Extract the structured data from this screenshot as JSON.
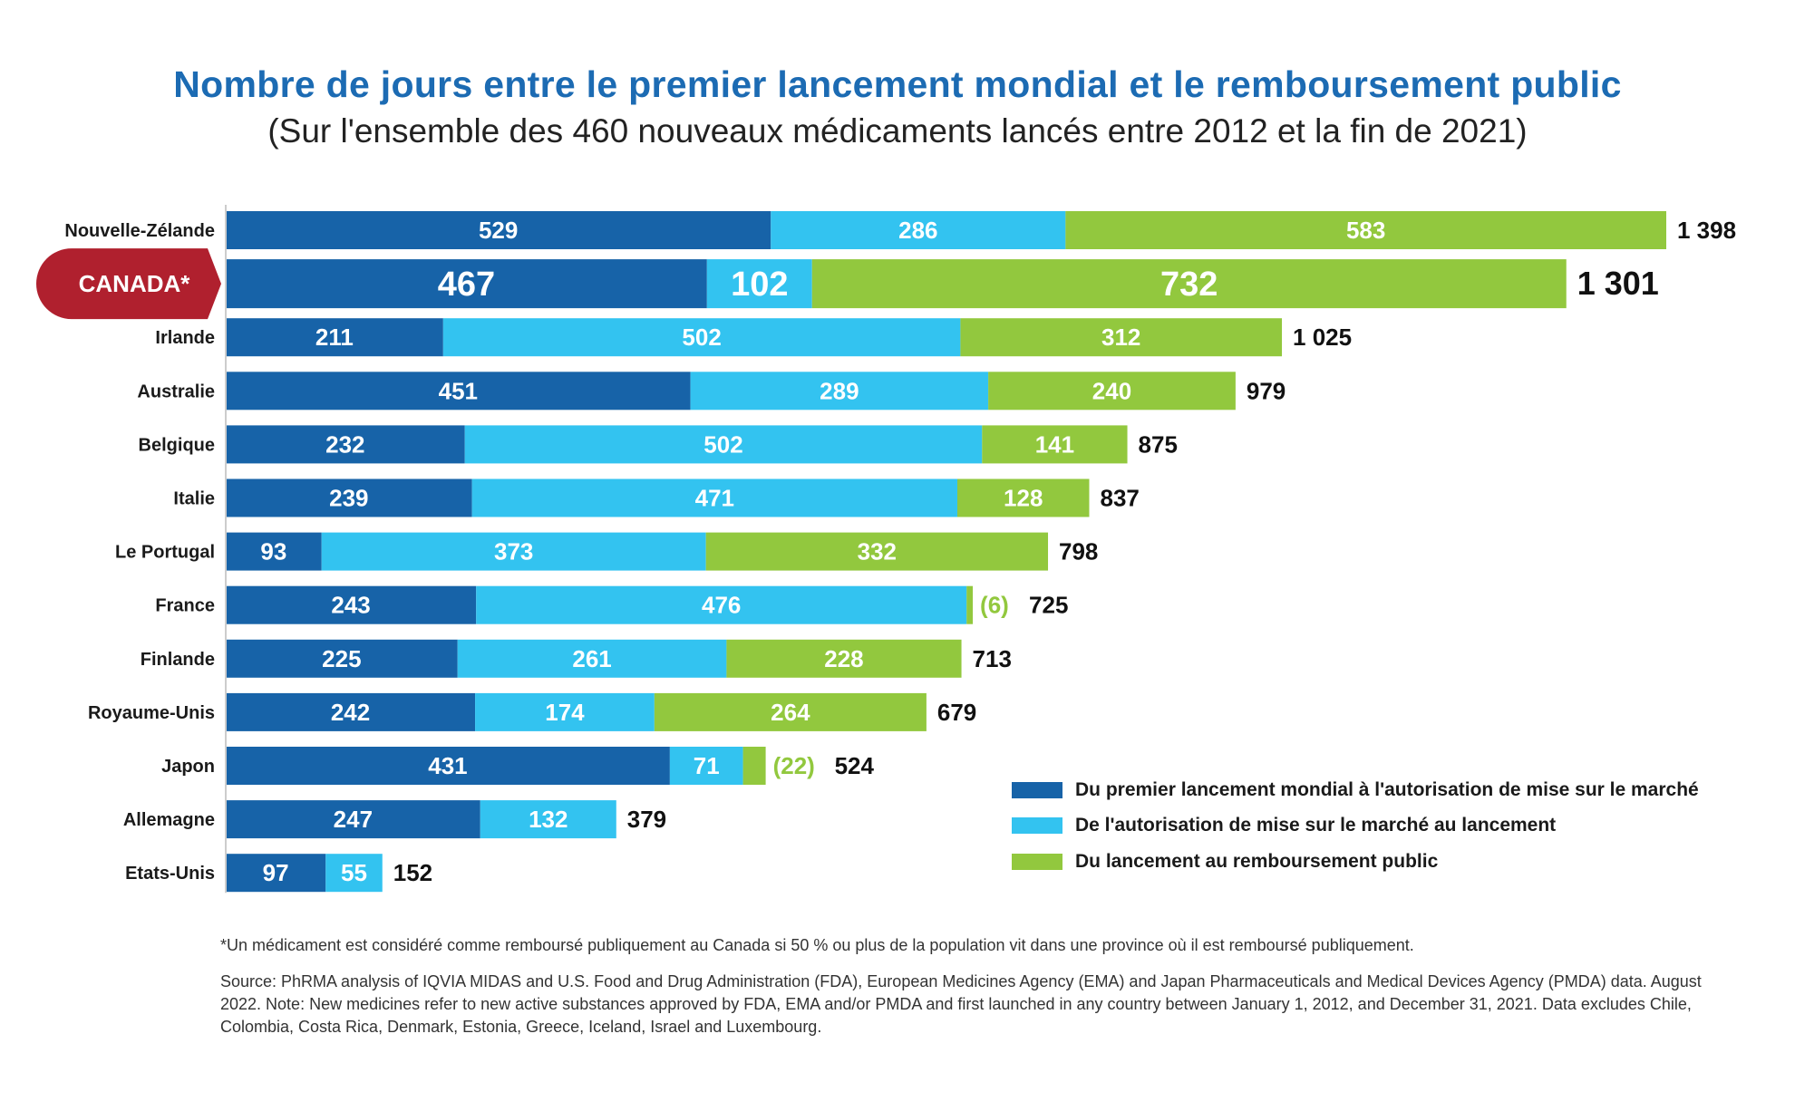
{
  "chart_data": {
    "type": "bar",
    "orientation": "horizontal",
    "stacked": true,
    "title": "Nombre de jours entre le premier lancement mondial et le remboursement public",
    "subtitle": "(Sur l'ensemble des 460 nouveaux médicaments lancés entre 2012 et la fin de 2021)",
    "categories": [
      "Nouvelle-Zélande",
      "CANADA*",
      "Irlande",
      "Australie",
      "Belgique",
      "Italie",
      "Le Portugal",
      "France",
      "Finlande",
      "Royaume-Unis",
      "Japon",
      "Allemagne",
      "Etats-Unis"
    ],
    "highlight": "CANADA*",
    "series": [
      {
        "name": "Du premier lancement mondial à l'autorisation de mise sur le marché",
        "color": "#1763a8",
        "values": [
          529,
          467,
          211,
          451,
          232,
          239,
          93,
          243,
          225,
          242,
          431,
          247,
          97
        ]
      },
      {
        "name": "De l'autorisation de mise sur le marché au lancement",
        "color": "#33c3f0",
        "values": [
          286,
          102,
          502,
          289,
          502,
          471,
          373,
          476,
          261,
          174,
          71,
          132,
          55
        ]
      },
      {
        "name": "Du lancement au remboursement public",
        "color": "#92c83e",
        "values": [
          583,
          732,
          312,
          240,
          141,
          128,
          332,
          6,
          228,
          264,
          22,
          0,
          0
        ]
      }
    ],
    "segment_labels": [
      [
        "529",
        "286",
        "583"
      ],
      [
        "467",
        "102",
        "732"
      ],
      [
        "211",
        "502",
        "312"
      ],
      [
        "451",
        "289",
        "240"
      ],
      [
        "232",
        "502",
        "141"
      ],
      [
        "239",
        "471",
        "128"
      ],
      [
        "93",
        "373",
        "332"
      ],
      [
        "243",
        "476",
        "(6)"
      ],
      [
        "225",
        "261",
        "228"
      ],
      [
        "242",
        "174",
        "264"
      ],
      [
        "431",
        "71",
        "(22)"
      ],
      [
        "247",
        "132",
        ""
      ],
      [
        "97",
        "55",
        ""
      ]
    ],
    "totals": [
      "1 398",
      "1 301",
      "1 025",
      "979",
      "875",
      "837",
      "798",
      "725",
      "713",
      "679",
      "524",
      "379",
      "152"
    ],
    "xlim": [
      0,
      1398
    ],
    "grid": false,
    "legend_position": "bottom-right"
  },
  "colors": {
    "title": "#1c6bb3",
    "highlight_badge": "#b0202e"
  },
  "footnote": "*Un médicament est considéré comme remboursé publiquement au Canada si 50 % ou plus de la population vit dans une province où il est remboursé publiquement.",
  "source": "Source: PhRMA analysis of IQVIA MIDAS and U.S. Food and Drug Administration (FDA), European Medicines Agency (EMA) and Japan Pharmaceuticals and Medical Devices Agency (PMDA) data. August 2022. Note: New medicines refer to new active substances approved by FDA, EMA and/or PMDA and first launched in any country between January 1, 2012, and December 31, 2021. Data excludes Chile, Colombia, Costa Rica, Denmark, Estonia, Greece, Iceland, Israel and Luxembourg."
}
